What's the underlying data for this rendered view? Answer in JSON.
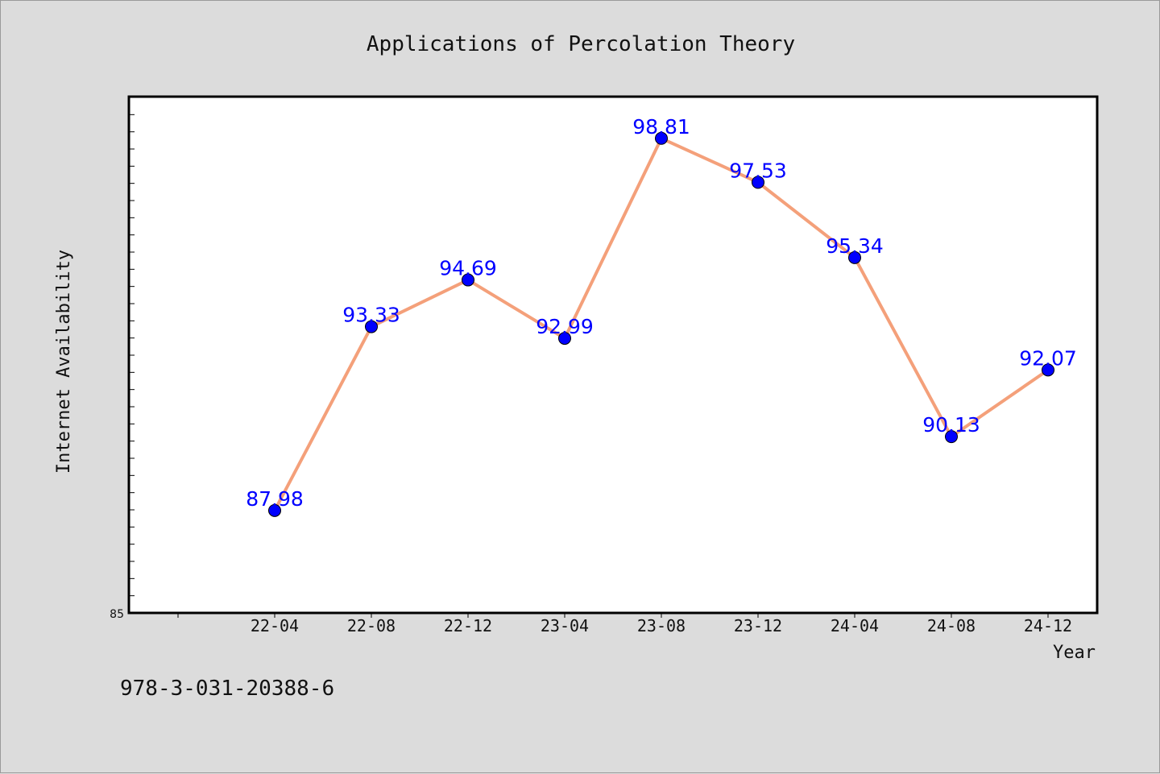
{
  "chart_data": {
    "type": "line",
    "title": "Applications of Percolation Theory",
    "xlabel": "Year",
    "ylabel": "Internet Availability",
    "categories": [
      "22-04",
      "22-08",
      "22-12",
      "23-04",
      "23-08",
      "23-12",
      "24-04",
      "24-08",
      "24-12"
    ],
    "series": [
      {
        "values": [
          87.98,
          93.33,
          94.69,
          92.99,
          98.81,
          97.53,
          95.34,
          90.13,
          92.07
        ],
        "line_color": "#f4a07a",
        "marker_color": "#0000ff",
        "label_color": "#0000ff"
      }
    ],
    "data_labels": [
      "87.98",
      "93.33",
      "94.69",
      "92.99",
      "98.81",
      "97.53",
      "95.34",
      "90.13",
      "92.07"
    ],
    "ylim": [
      85,
      100
    ],
    "y_tick_labels": [
      "85"
    ],
    "grid": false,
    "legend": "none"
  },
  "footer": {
    "isbn": "978-3-031-20388-6"
  },
  "colors": {
    "background": "#dcdcdc",
    "plot_area": "#ffffff",
    "axis": "#000000"
  }
}
